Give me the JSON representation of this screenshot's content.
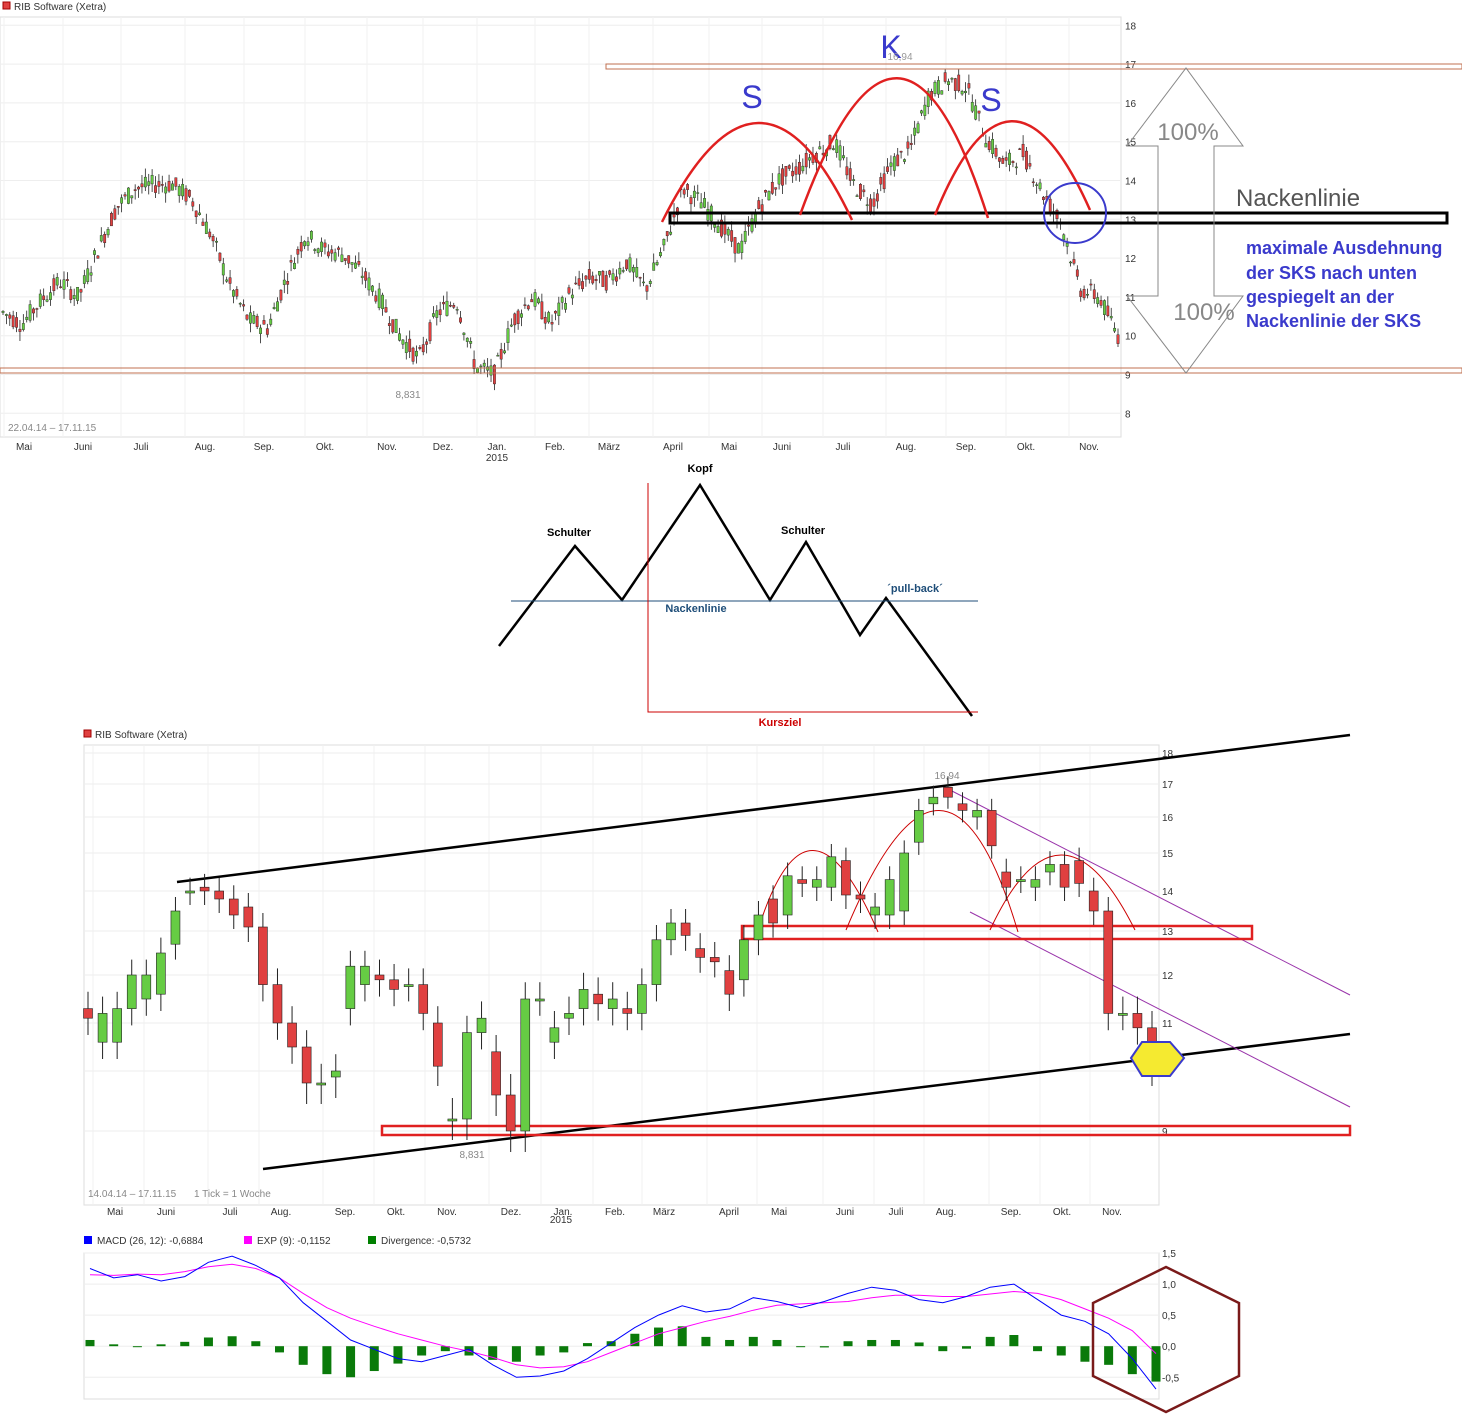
{
  "chart_data": [
    {
      "type": "candlestick",
      "title": "RIB Software (Xetra)",
      "date_range": "22.04.14 – 17.11.15",
      "x_months": [
        "Mai",
        "Juni",
        "Juli",
        "Aug.",
        "Sep.",
        "Okt.",
        "Nov.",
        "Dez.",
        "Jan.",
        "Feb.",
        "März",
        "April",
        "Mai",
        "Juni",
        "Juli",
        "Aug.",
        "Sep.",
        "Okt.",
        "Nov."
      ],
      "x_year_label": "2015",
      "y_ticks": [
        8,
        9,
        10,
        11,
        12,
        13,
        14,
        15,
        16,
        17,
        18
      ],
      "ylim": [
        7.4,
        18.4
      ],
      "low_label": "8,831",
      "high_label": "16,94",
      "closes_approx": [
        10.6,
        10.3,
        10.9,
        11.4,
        11.0,
        12.2,
        13.3,
        13.8,
        13.9,
        13.9,
        13.5,
        12.6,
        11.3,
        10.4,
        10.2,
        11.5,
        12.6,
        12.2,
        12.1,
        11.6,
        10.9,
        10.0,
        9.4,
        10.6,
        10.9,
        9.2,
        9.0,
        10.4,
        11.0,
        10.3,
        11.1,
        11.5,
        11.4,
        11.9,
        11.2,
        12.3,
        13.8,
        13.4,
        12.8,
        12.2,
        13.3,
        14.0,
        14.3,
        14.7,
        15.0,
        13.9,
        13.4,
        14.4,
        14.8,
        16.2,
        16.6,
        16.4,
        15.1,
        14.4,
        14.7,
        13.7,
        12.9,
        11.2,
        11.0,
        10.0
      ],
      "annotations": {
        "shoulder_left": "S",
        "head": "K",
        "shoulder_right": "S",
        "neckline_label": "Nackenlinie",
        "pct_up": "100%",
        "pct_down": "100%",
        "note": [
          "maximale Ausdehnung",
          "der SKS nach unten",
          "gespiegelt an der",
          "Nackenlinie der SKS"
        ],
        "neckline_value": 12.95,
        "resistance_top": 16.95,
        "support_bottom": 9.05
      }
    },
    {
      "type": "diagram",
      "labels": {
        "head": "Kopf",
        "shoulder_left": "Schulter",
        "shoulder_right": "Schulter",
        "neckline": "Nackenlinie",
        "pullback": "´pull-back´",
        "target": "Kursziel"
      }
    },
    {
      "type": "candlestick",
      "title": "RIB Software (Xetra)",
      "date_range": "14.04.14 – 17.11.15",
      "tick_info": "1 Tick = 1 Woche",
      "x_months": [
        "Mai",
        "Juni",
        "Juli",
        "Aug.",
        "Sep.",
        "Okt.",
        "Nov.",
        "Dez.",
        "Jan.",
        "Feb.",
        "März",
        "April",
        "Mai",
        "Juni",
        "Juli",
        "Aug.",
        "Sep.",
        "Okt.",
        "Nov."
      ],
      "x_year_label": "2015",
      "y_ticks": [
        9,
        10,
        11,
        12,
        13,
        14,
        15,
        16,
        17,
        18
      ],
      "y_ticks_log": true,
      "low_label": "8,831",
      "high_label": "16,94",
      "weekly_candles": [
        [
          11.3,
          11.1
        ],
        [
          10.6,
          11.2
        ],
        [
          10.6,
          11.3
        ],
        [
          11.3,
          12.0
        ],
        [
          11.5,
          12.0
        ],
        [
          11.6,
          12.5
        ],
        [
          12.7,
          13.5
        ],
        [
          14.0,
          14.0
        ],
        [
          14.1,
          14.0
        ],
        [
          14.0,
          13.8
        ],
        [
          13.8,
          13.4
        ],
        [
          13.6,
          13.1
        ],
        [
          13.1,
          11.8
        ],
        [
          11.8,
          11.0
        ],
        [
          11.0,
          10.5
        ],
        [
          10.5,
          9.8
        ],
        [
          9.8,
          9.8
        ],
        [
          9.9,
          10.0
        ],
        [
          11.3,
          12.2
        ],
        [
          11.8,
          12.2
        ],
        [
          12.0,
          11.9
        ],
        [
          11.9,
          11.7
        ],
        [
          11.8,
          11.8
        ],
        [
          11.8,
          11.2
        ],
        [
          11.0,
          10.1
        ],
        [
          9.2,
          9.2
        ],
        [
          9.2,
          10.8
        ],
        [
          10.8,
          11.1
        ],
        [
          10.4,
          9.6
        ],
        [
          9.6,
          9.0
        ],
        [
          9.0,
          11.5
        ],
        [
          11.5,
          11.5
        ],
        [
          10.6,
          10.9
        ],
        [
          11.1,
          11.2
        ],
        [
          11.3,
          11.7
        ],
        [
          11.6,
          11.4
        ],
        [
          11.3,
          11.5
        ],
        [
          11.3,
          11.2
        ],
        [
          11.2,
          11.8
        ],
        [
          11.8,
          12.8
        ],
        [
          12.8,
          13.2
        ],
        [
          13.2,
          12.9
        ],
        [
          12.6,
          12.4
        ],
        [
          12.4,
          12.3
        ],
        [
          12.1,
          11.6
        ],
        [
          11.9,
          12.8
        ],
        [
          12.8,
          13.4
        ],
        [
          13.8,
          13.2
        ],
        [
          13.4,
          14.4
        ],
        [
          14.3,
          14.2
        ],
        [
          14.1,
          14.3
        ],
        [
          14.1,
          14.9
        ],
        [
          14.8,
          13.9
        ],
        [
          13.9,
          13.8
        ],
        [
          13.4,
          13.6
        ],
        [
          13.4,
          14.3
        ],
        [
          13.5,
          15.0
        ],
        [
          15.3,
          16.2
        ],
        [
          16.4,
          16.6
        ],
        [
          16.9,
          16.6
        ],
        [
          16.4,
          16.2
        ],
        [
          16.0,
          16.2
        ],
        [
          16.2,
          15.2
        ],
        [
          14.5,
          14.1
        ],
        [
          14.3,
          14.3
        ],
        [
          14.1,
          14.3
        ],
        [
          14.5,
          14.7
        ],
        [
          14.7,
          14.1
        ],
        [
          14.8,
          14.2
        ],
        [
          14.0,
          13.5
        ],
        [
          13.5,
          11.2
        ],
        [
          11.2,
          11.2
        ],
        [
          11.2,
          10.9
        ],
        [
          10.9,
          10.1
        ]
      ],
      "annotations": {
        "channel": "ascending channel",
        "neck_zone": [
          12.8,
          13.0
        ],
        "support_zone": [
          9.1,
          9.3
        ]
      }
    },
    {
      "type": "line",
      "legend": [
        {
          "name": "MACD (26, 12): -0,6884",
          "color": "#0000ff"
        },
        {
          "name": "EXP (9): -0,1152",
          "color": "#ff00ff"
        },
        {
          "name": "Divergence: -0,5732",
          "color": "#008000"
        }
      ],
      "y_ticks": [
        "1,5",
        "1,0",
        "0,5",
        "0,0",
        "-0,5"
      ],
      "ylim": [
        -0.85,
        1.5
      ],
      "macd": [
        1.25,
        1.1,
        1.15,
        1.05,
        1.12,
        1.35,
        1.45,
        1.3,
        1.1,
        0.7,
        0.4,
        0.1,
        -0.05,
        -0.2,
        -0.25,
        -0.15,
        -0.05,
        -0.3,
        -0.5,
        -0.48,
        -0.4,
        -0.2,
        0.05,
        0.3,
        0.5,
        0.65,
        0.55,
        0.6,
        0.78,
        0.72,
        0.62,
        0.72,
        0.85,
        0.95,
        0.9,
        0.75,
        0.7,
        0.8,
        0.95,
        1.0,
        0.75,
        0.5,
        0.4,
        0.2,
        -0.2,
        -0.69
      ],
      "exp": [
        1.15,
        1.14,
        1.16,
        1.15,
        1.2,
        1.28,
        1.32,
        1.25,
        1.1,
        0.85,
        0.62,
        0.45,
        0.32,
        0.2,
        0.1,
        0.0,
        -0.08,
        -0.18,
        -0.3,
        -0.35,
        -0.33,
        -0.25,
        -0.1,
        0.05,
        0.2,
        0.3,
        0.4,
        0.48,
        0.58,
        0.66,
        0.68,
        0.7,
        0.72,
        0.78,
        0.82,
        0.82,
        0.8,
        0.8,
        0.84,
        0.88,
        0.85,
        0.75,
        0.6,
        0.45,
        0.25,
        -0.12
      ],
      "divergence": [
        0.1,
        0.03,
        -0.01,
        0.03,
        0.07,
        0.14,
        0.16,
        0.08,
        -0.1,
        -0.3,
        -0.45,
        -0.5,
        -0.4,
        -0.28,
        -0.15,
        -0.08,
        -0.15,
        -0.22,
        -0.25,
        -0.15,
        -0.1,
        0.05,
        0.08,
        0.2,
        0.3,
        0.32,
        0.15,
        0.1,
        0.15,
        0.1,
        0.0,
        -0.02,
        0.08,
        0.1,
        0.1,
        0.06,
        -0.08,
        -0.04,
        0.15,
        0.18,
        -0.08,
        -0.15,
        -0.25,
        -0.3,
        -0.45,
        -0.57
      ]
    }
  ]
}
